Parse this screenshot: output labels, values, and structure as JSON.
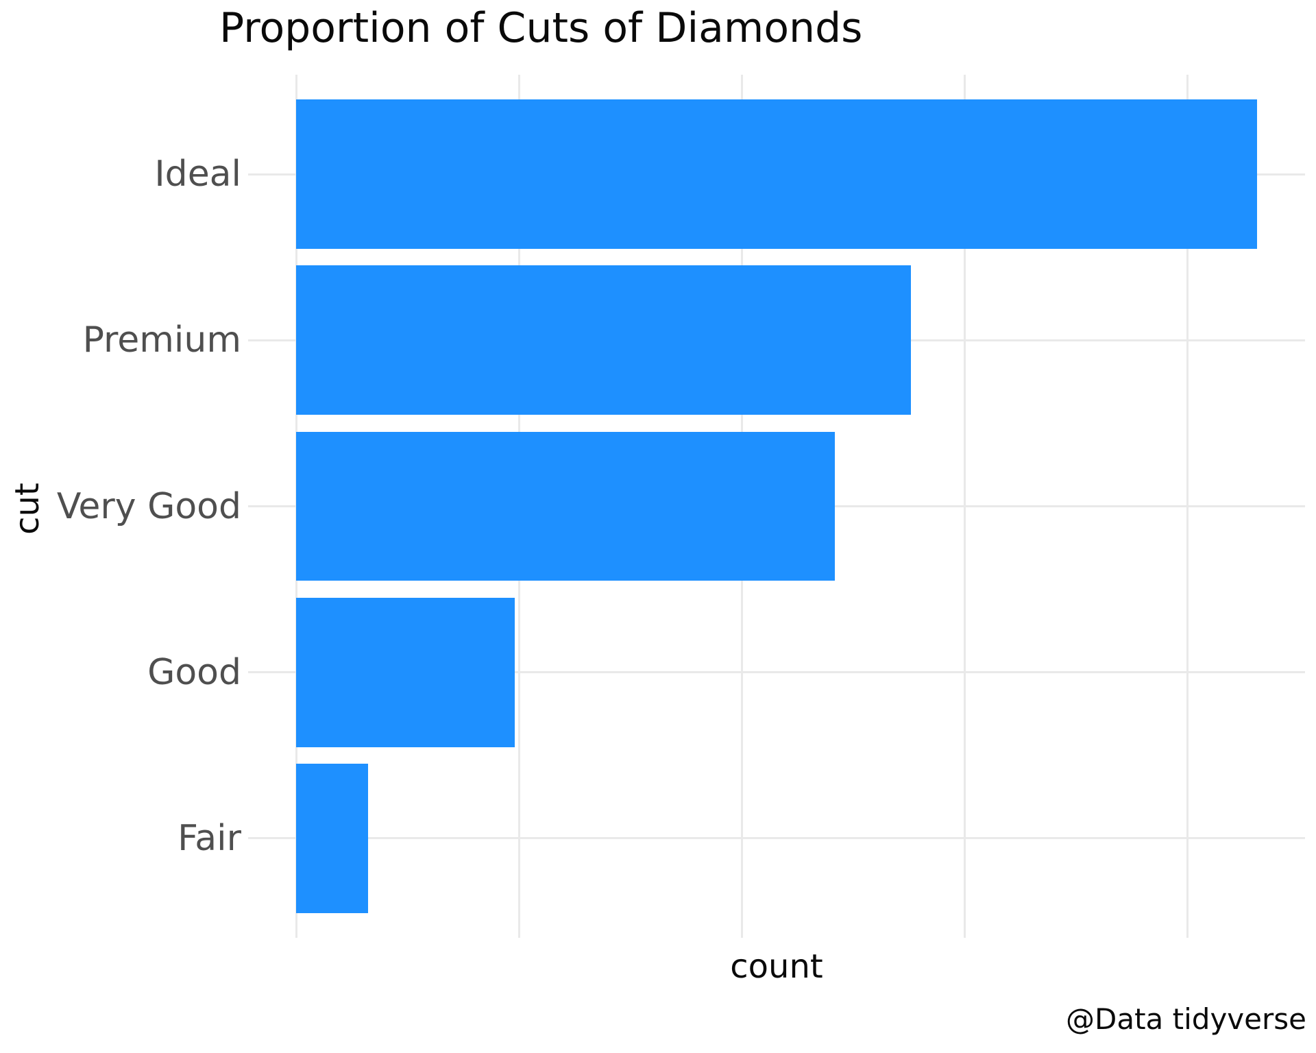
{
  "title": "Proportion of Cuts of Diamonds",
  "watermark": "@Data tidyverse",
  "chart_data": {
    "type": "bar",
    "orientation": "horizontal",
    "title": "Proportion of Cuts of Diamonds",
    "categories": [
      "Ideal",
      "Premium",
      "Very Good",
      "Good",
      "Fair"
    ],
    "values": [
      21551,
      13791,
      12082,
      4906,
      1610
    ],
    "xlabel": "count",
    "ylabel": "cut",
    "x_breaks": [
      0,
      5000,
      10000,
      15000,
      20000
    ],
    "x_tick_labels_visible": false,
    "xlim": [
      -1078,
      22629
    ],
    "grid": "major-only",
    "legend": "none",
    "bar_fill": "#1E90FF",
    "grid_color": "#E9E9E9",
    "category_label_color": "#4F4F4F",
    "text_color": "#0A0A0A",
    "background": "#FFFFFF",
    "bar_band_fraction": 0.9,
    "band_edge_padding_units": 0.6
  }
}
